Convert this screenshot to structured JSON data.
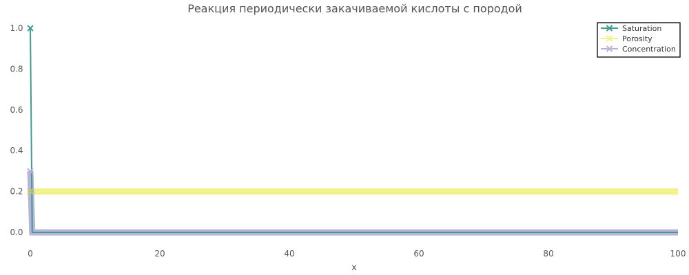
{
  "chart_data": {
    "type": "line",
    "title": "Реакция периодически закачиваемой кислоты с породой",
    "xlabel": "x",
    "ylabel": "",
    "xlim": [
      0,
      100
    ],
    "ylim": [
      0.0,
      1.0
    ],
    "x_ticks": [
      0,
      20,
      40,
      60,
      80,
      100
    ],
    "y_ticks": [
      0.0,
      0.2,
      0.4,
      0.6,
      0.8,
      1.0
    ],
    "x_tick_labels": [
      "0",
      "20",
      "40",
      "60",
      "80",
      "100"
    ],
    "y_tick_labels": [
      "0.0",
      "0.2",
      "0.4",
      "0.6",
      "0.8",
      "1.0"
    ],
    "grid": false,
    "legend_position": "top-right",
    "series": [
      {
        "name": "Saturation",
        "color": "#3f9c8f",
        "points": [
          [
            0,
            1.0
          ],
          [
            0.3,
            0.0
          ],
          [
            100,
            0.0
          ]
        ]
      },
      {
        "name": "Porosity",
        "color": "#f2f28a",
        "points": [
          [
            0,
            0.2
          ],
          [
            100,
            0.2
          ]
        ]
      },
      {
        "name": "Concentration",
        "color": "#b7b3d9",
        "points": [
          [
            0,
            0.3
          ],
          [
            0.3,
            0.0
          ],
          [
            100,
            0.0
          ]
        ]
      }
    ]
  }
}
